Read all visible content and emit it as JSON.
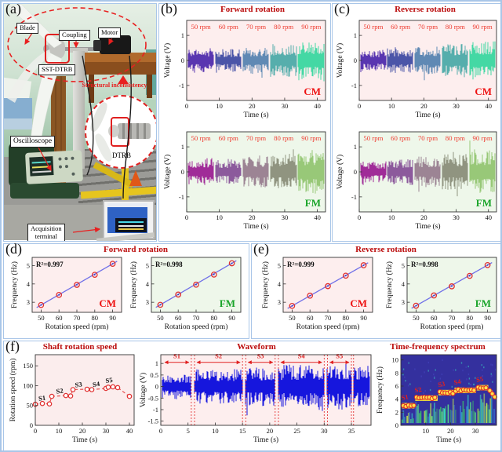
{
  "theme": {
    "panel_border": "#a9c6e8",
    "title_red": "#bb0b0b",
    "rpm_red": "#ee3b30",
    "cm_red": "#ee1111",
    "fm_green": "#18a428",
    "fit_blue": "#7070e8",
    "marker_red": "#e03030",
    "wave_blue": "#1616dd",
    "pink_bg": "#fdeeee",
    "green_bg": "#eef7ea",
    "heat_bg": "#34309e"
  },
  "panels": {
    "a": {
      "tag": "(a)",
      "labels": {
        "blade": "Blade",
        "coupling": "Coupling",
        "motor": "Motor",
        "sst_dtrb": "SST-DTRB",
        "structural": "Structural inconsistency",
        "oscilloscope": "Oscilloscope",
        "dtrb": "DTRB",
        "acquisition": "Acquisition\nterminal"
      }
    },
    "b": {
      "tag": "(b)",
      "title": "Forward rotation"
    },
    "c": {
      "tag": "(c)",
      "title": "Reverse rotation"
    },
    "d": {
      "tag": "(d)",
      "title": "Forward rotation"
    },
    "e": {
      "tag": "(e)",
      "title": "Reverse rotation"
    },
    "f": {
      "tag": "(f)",
      "titles": {
        "speed": "Shaft rotation speed",
        "wave": "Waveform",
        "tfs": "Time-frequency spectrum"
      }
    }
  },
  "chart_data": [
    {
      "id": "b_cm",
      "type": "line",
      "subtype": "noise",
      "seed": 11,
      "title": "Forward rotation",
      "xlabel": "Time (s)",
      "ylabel": "Voltage (V)",
      "xlim": [
        0,
        42.5
      ],
      "ylim": [
        -1.6,
        1.6
      ],
      "xticks": [
        0,
        10,
        20,
        30,
        40
      ],
      "yticks": [
        -1,
        0,
        1
      ],
      "bg": "#fdeeee",
      "corner": {
        "label": "CM",
        "color": "#ee1111"
      },
      "segments": [
        {
          "label": "50 rpm",
          "color": "#5936b0",
          "amp": 0.5
        },
        {
          "label": "60 rpm",
          "color": "#4b55a8",
          "amp": 0.46
        },
        {
          "label": "70 rpm",
          "color": "#6089b4",
          "amp": 0.55
        },
        {
          "label": "80 rpm",
          "color": "#56aeac",
          "amp": 0.68
        },
        {
          "label": "90 rpm",
          "color": "#44d8a4",
          "amp": 0.85
        }
      ]
    },
    {
      "id": "b_fm",
      "type": "line",
      "subtype": "noise",
      "seed": 22,
      "title": "Forward rotation",
      "xlabel": "Time (s)",
      "ylabel": "Voltage (V)",
      "xlim": [
        0,
        42.5
      ],
      "ylim": [
        -1.6,
        1.6
      ],
      "xticks": [
        0,
        10,
        20,
        30,
        40
      ],
      "yticks": [
        -1,
        0,
        1
      ],
      "bg": "#eef7ea",
      "corner": {
        "label": "FM",
        "color": "#18a428"
      },
      "segments": [
        {
          "label": "50 rpm",
          "color": "#a02c98",
          "amp": 0.55
        },
        {
          "label": "60 rpm",
          "color": "#8c5a9c",
          "amp": 0.52
        },
        {
          "label": "70 rpm",
          "color": "#9c8494",
          "amp": 0.62
        },
        {
          "label": "80 rpm",
          "color": "#909480",
          "amp": 0.72
        },
        {
          "label": "90 rpm",
          "color": "#98c878",
          "amp": 0.88
        }
      ]
    },
    {
      "id": "c_cm",
      "type": "line",
      "subtype": "noise",
      "seed": 33,
      "title": "Reverse rotation",
      "xlabel": "Time (s)",
      "ylabel": "Voltage (V)",
      "xlim": [
        0,
        42.5
      ],
      "ylim": [
        -1.6,
        1.6
      ],
      "xticks": [
        0,
        10,
        20,
        30,
        40
      ],
      "yticks": [
        -1,
        0,
        1
      ],
      "bg": "#fdeeee",
      "corner": {
        "label": "CM",
        "color": "#ee1111"
      },
      "segments": [
        {
          "label": "50 rpm",
          "color": "#5936b0",
          "amp": 0.42
        },
        {
          "label": "60 rpm",
          "color": "#4b55a8",
          "amp": 0.5
        },
        {
          "label": "70 rpm",
          "color": "#6089b4",
          "amp": 0.55
        },
        {
          "label": "80 rpm",
          "color": "#56aeac",
          "amp": 0.68
        },
        {
          "label": "90 rpm",
          "color": "#44d8a4",
          "amp": 0.78
        }
      ]
    },
    {
      "id": "c_fm",
      "type": "line",
      "subtype": "noise",
      "seed": 44,
      "title": "Reverse rotation",
      "xlabel": "Time (s)",
      "ylabel": "Voltage (V)",
      "xlim": [
        0,
        42.5
      ],
      "ylim": [
        -1.6,
        1.6
      ],
      "xticks": [
        0,
        10,
        20,
        30,
        40
      ],
      "yticks": [
        -1,
        0,
        1
      ],
      "bg": "#eef7ea",
      "corner": {
        "label": "FM",
        "color": "#18a428"
      },
      "segments": [
        {
          "label": "50 rpm",
          "color": "#a02c98",
          "amp": 0.42
        },
        {
          "label": "60 rpm",
          "color": "#8c5a9c",
          "amp": 0.52
        },
        {
          "label": "70 rpm",
          "color": "#9c8494",
          "amp": 0.62
        },
        {
          "label": "80 rpm",
          "color": "#909480",
          "amp": 0.72
        },
        {
          "label": "90 rpm",
          "color": "#98c878",
          "amp": 0.92
        }
      ]
    },
    {
      "id": "d_cm",
      "type": "scatter",
      "subtype": "fit",
      "title": "Forward rotation",
      "r2": "R²=0.997",
      "x": [
        50,
        60,
        70,
        80,
        90
      ],
      "y": [
        2.85,
        3.4,
        3.95,
        4.5,
        5.1
      ],
      "xlabel": "Rotation  speed (rpm)",
      "ylabel": "Frequency (Hz)",
      "xlim": [
        45,
        95
      ],
      "ylim": [
        2.45,
        5.45
      ],
      "xticks": [
        50,
        60,
        70,
        80,
        90
      ],
      "yticks": [
        3,
        4,
        5
      ],
      "bg": "#fdeeee",
      "corner": {
        "label": "CM",
        "color": "#ee1111"
      }
    },
    {
      "id": "d_fm",
      "type": "scatter",
      "subtype": "fit",
      "title": "Forward rotation",
      "r2": "R²=0.998",
      "x": [
        50,
        60,
        70,
        80,
        90
      ],
      "y": [
        2.86,
        3.42,
        3.96,
        4.51,
        5.13
      ],
      "xlabel": "Rotation  speed (rpm)",
      "ylabel": "Frequency (Hz)",
      "xlim": [
        45,
        95
      ],
      "ylim": [
        2.45,
        5.45
      ],
      "xticks": [
        50,
        60,
        70,
        80,
        90
      ],
      "yticks": [
        3,
        4,
        5
      ],
      "bg": "#eef7ea",
      "corner": {
        "label": "FM",
        "color": "#18a428"
      }
    },
    {
      "id": "e_cm",
      "type": "scatter",
      "subtype": "fit",
      "title": "Reverse rotation",
      "r2": "R²=0.999",
      "x": [
        50,
        60,
        70,
        80,
        90
      ],
      "y": [
        2.8,
        3.36,
        3.88,
        4.45,
        5.02
      ],
      "xlabel": "Rotation  speed (rpm)",
      "ylabel": "Frequency (Hz)",
      "xlim": [
        45,
        95
      ],
      "ylim": [
        2.45,
        5.45
      ],
      "xticks": [
        50,
        60,
        70,
        80,
        90
      ],
      "yticks": [
        3,
        4,
        5
      ],
      "bg": "#fdeeee",
      "corner": {
        "label": "CM",
        "color": "#ee1111"
      }
    },
    {
      "id": "e_fm",
      "type": "scatter",
      "subtype": "fit",
      "title": "Reverse rotation",
      "r2": "R²=0.998",
      "x": [
        50,
        60,
        70,
        80,
        90
      ],
      "y": [
        2.81,
        3.37,
        3.87,
        4.44,
        5.03
      ],
      "xlabel": "Rotation  speed (rpm)",
      "ylabel": "Frequency (Hz)",
      "xlim": [
        45,
        95
      ],
      "ylim": [
        2.45,
        5.45
      ],
      "xticks": [
        50,
        60,
        70,
        80,
        90
      ],
      "yticks": [
        3,
        4,
        5
      ],
      "bg": "#eef7ea",
      "corner": {
        "label": "FM",
        "color": "#18a428"
      }
    },
    {
      "id": "f_speed",
      "type": "scatter",
      "subtype": "speed",
      "title": "Shaft rotation speed",
      "xlabel": "Time  (s)",
      "ylabel": "Rotation speed (rpm)",
      "xlim": [
        0,
        42
      ],
      "ylim": [
        0,
        178
      ],
      "xticks": [
        0,
        10,
        20,
        30,
        40
      ],
      "yticks": [
        0,
        50,
        100,
        150
      ],
      "bg": "#fbeded",
      "points": [
        [
          0,
          53
        ],
        [
          3,
          55
        ],
        [
          6,
          54
        ],
        [
          7,
          73
        ],
        [
          13,
          75
        ],
        [
          15,
          74
        ],
        [
          16,
          90
        ],
        [
          22,
          91
        ],
        [
          24,
          90
        ],
        [
          30,
          93
        ],
        [
          31,
          96
        ],
        [
          33,
          97
        ],
        [
          35,
          95
        ],
        [
          40,
          73
        ]
      ],
      "seg_labels": [
        {
          "label": "S1",
          "x": 3,
          "y": 63
        },
        {
          "label": "S2",
          "x": 10.5,
          "y": 81
        },
        {
          "label": "S3",
          "x": 18.5,
          "y": 97
        },
        {
          "label": "S4",
          "x": 26,
          "y": 98
        },
        {
          "label": "S5",
          "x": 31.5,
          "y": 108
        }
      ]
    },
    {
      "id": "f_wave",
      "type": "line",
      "subtype": "wave",
      "seed": 55,
      "title": "Waveform",
      "xlabel": "Time  (s)",
      "ylabel": "Voltage (V)",
      "xlim": [
        0,
        38.6
      ],
      "ylim": [
        -1.68,
        1.38
      ],
      "xticks": [
        0,
        5,
        10,
        15,
        20,
        25,
        30,
        35
      ],
      "yticks": [
        1,
        0.5,
        0,
        -0.5,
        -1,
        -1.5
      ],
      "bg": "#fdeeee",
      "color": "#1616dd",
      "annotation_color": "#e02020",
      "segments": [
        {
          "label": "S1",
          "t0": 0.3,
          "t1": 5.6,
          "amp": 0.55
        },
        {
          "label": "S2",
          "t0": 6.2,
          "t1": 15.0,
          "amp": 0.75
        },
        {
          "label": "S3",
          "t0": 15.6,
          "t1": 21.0,
          "amp": 0.85
        },
        {
          "label": "S4",
          "t0": 21.6,
          "t1": 30.0,
          "amp": 0.95
        },
        {
          "label": "S5",
          "t0": 30.6,
          "t1": 35.0,
          "amp": 1.02
        },
        {
          "label": "",
          "t0": 35.4,
          "t1": 38.4,
          "amp": 0.9
        }
      ],
      "boundary_pairs": [
        [
          5.6,
          6.2
        ],
        [
          15.0,
          15.6
        ],
        [
          21.0,
          21.6
        ],
        [
          30.0,
          30.6
        ],
        [
          35.0,
          35.4
        ]
      ]
    },
    {
      "id": "f_tfs",
      "type": "heatmap",
      "subtype": "tfs",
      "seed": 66,
      "title": "Time-frequency spectrum",
      "xlabel": "Time  (s)",
      "ylabel": "Frequency (Hz)",
      "xlim": [
        0,
        38.5
      ],
      "ylim": [
        0,
        10.8
      ],
      "xticks": [
        10,
        20,
        30
      ],
      "yticks": [
        0,
        2,
        4,
        6,
        8,
        10
      ],
      "bg": "#34309e",
      "band_color": "#efe03c",
      "ridge": [
        {
          "label": "S1",
          "t0": 0.5,
          "t1": 5.5,
          "f": 3.0
        },
        {
          "label": "S2",
          "t0": 5.8,
          "t1": 14.8,
          "f": 4.15
        },
        {
          "label": "S3",
          "t0": 15.2,
          "t1": 21.2,
          "f": 5.0
        },
        {
          "label": "S4",
          "t0": 21.6,
          "t1": 30.2,
          "f": 5.35
        },
        {
          "label": "S5",
          "t0": 30.6,
          "t1": 35.2,
          "f": 5.75
        }
      ],
      "tail": {
        "t0": 35.4,
        "t1": 38.2,
        "f0": 5.5,
        "f1": 4.15
      }
    }
  ]
}
